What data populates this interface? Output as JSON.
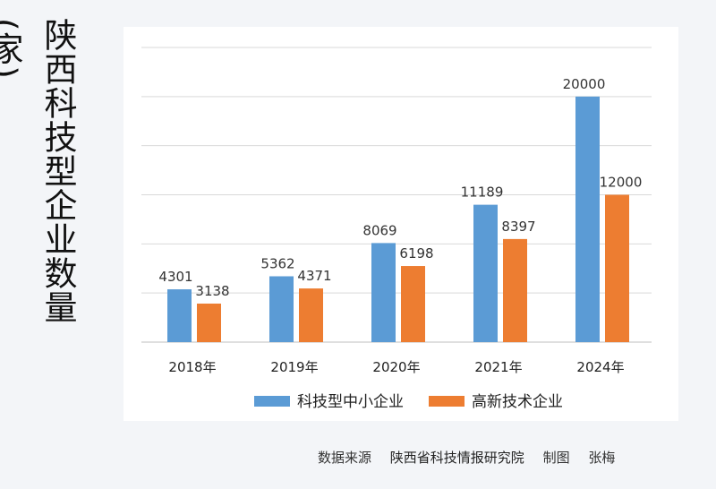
{
  "title": "陕西科技型企业数量(家)",
  "source": {
    "label": "数据来源",
    "org": "陕西省科技情报研究院",
    "made_by_label": "制图",
    "author": "张梅"
  },
  "colors": {
    "series1": "#5b9bd5",
    "series2": "#ed7d31",
    "grid": "#d9d9d9"
  },
  "chart_data": {
    "type": "bar",
    "title": "陕西科技型企业数量(家)",
    "xlabel": "",
    "ylabel": "",
    "categories": [
      "2018年",
      "2019年",
      "2020年",
      "2021年",
      "2024年"
    ],
    "series": [
      {
        "name": "科技型中小企业",
        "values": [
          4301,
          5362,
          8069,
          11189,
          20000
        ]
      },
      {
        "name": "高新技术企业",
        "values": [
          3138,
          4371,
          6198,
          8397,
          12000
        ]
      }
    ],
    "ylim": [
      0,
      24000
    ],
    "grid": true,
    "legend": "bottom"
  }
}
